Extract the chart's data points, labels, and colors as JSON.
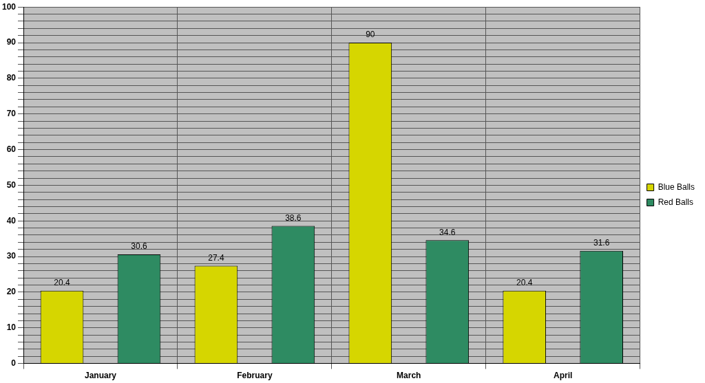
{
  "chart_data": {
    "type": "bar",
    "categories": [
      "January",
      "February",
      "March",
      "April"
    ],
    "series": [
      {
        "name": "Blue Balls",
        "color": "#d6d600",
        "values": [
          20.4,
          27.4,
          90,
          20.4
        ]
      },
      {
        "name": "Red Balls",
        "color": "#2e8b62",
        "values": [
          30.6,
          38.6,
          34.6,
          31.6
        ]
      }
    ],
    "ylim": [
      0,
      100
    ],
    "yticks": [
      0,
      {
        "value": 2,
        "label": null
      },
      {
        "value": 4,
        "label": null
      },
      {
        "value": 6,
        "label": null
      },
      {
        "value": 8,
        "label": null
      },
      10,
      {
        "value": 12,
        "label": null
      },
      {
        "value": 14,
        "label": null
      },
      {
        "value": 16,
        "label": null
      },
      {
        "value": 18,
        "label": null
      },
      20,
      {
        "value": 22,
        "label": null
      },
      {
        "value": 24,
        "label": null
      },
      {
        "value": 26,
        "label": null
      },
      {
        "value": 28,
        "label": null
      },
      30,
      {
        "value": 32,
        "label": null
      },
      {
        "value": 34,
        "label": null
      },
      {
        "value": 36,
        "label": null
      },
      {
        "value": 38,
        "label": null
      },
      40,
      {
        "value": 42,
        "label": null
      },
      {
        "value": 44,
        "label": null
      },
      {
        "value": 46,
        "label": null
      },
      {
        "value": 48,
        "label": null
      },
      50,
      {
        "value": 52,
        "label": null
      },
      {
        "value": 54,
        "label": null
      },
      {
        "value": 56,
        "label": null
      },
      {
        "value": 58,
        "label": null
      },
      60,
      {
        "value": 62,
        "label": null
      },
      {
        "value": 64,
        "label": null
      },
      {
        "value": 66,
        "label": null
      },
      {
        "value": 68,
        "label": null
      },
      70,
      {
        "value": 72,
        "label": null
      },
      {
        "value": 74,
        "label": null
      },
      {
        "value": 76,
        "label": null
      },
      {
        "value": 78,
        "label": null
      },
      80,
      {
        "value": 82,
        "label": null
      },
      {
        "value": 84,
        "label": null
      },
      {
        "value": 86,
        "label": null
      },
      {
        "value": 88,
        "label": null
      },
      90,
      {
        "value": 92,
        "label": null
      },
      {
        "value": 94,
        "label": null
      },
      {
        "value": 96,
        "label": null
      },
      {
        "value": 98,
        "label": null
      },
      100
    ],
    "grid": true,
    "legend": "right",
    "data_labels": true
  }
}
